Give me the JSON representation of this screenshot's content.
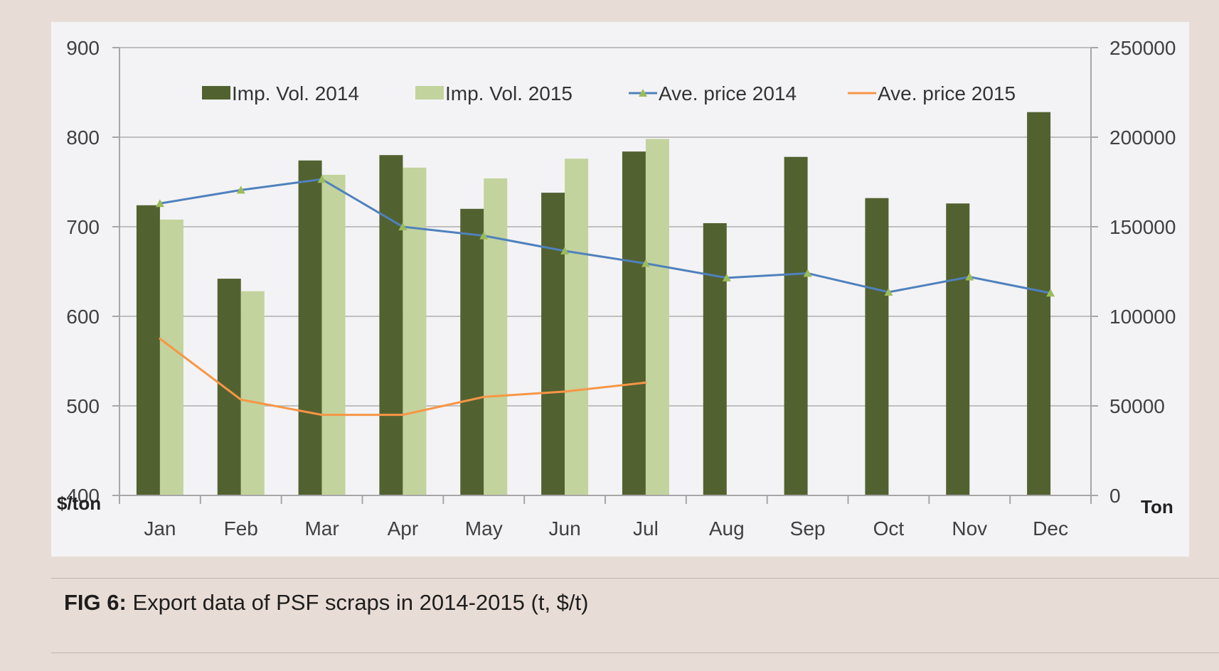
{
  "caption": {
    "label": "FIG 6:",
    "text": "Export data of PSF scraps in 2014-2015 (t, $/t)"
  },
  "chart_data": {
    "type": "bar",
    "categories": [
      "Jan",
      "Feb",
      "Mar",
      "Apr",
      "May",
      "Jun",
      "Jul",
      "Aug",
      "Sep",
      "Oct",
      "Nov",
      "Dec"
    ],
    "y_left": {
      "unit": "$/ton",
      "ylim": [
        400,
        900
      ],
      "ticks": [
        400,
        500,
        600,
        700,
        800,
        900
      ]
    },
    "y_right": {
      "unit": "Ton",
      "ylim": [
        0,
        250000
      ],
      "ticks": [
        0,
        50000,
        100000,
        150000,
        200000,
        250000
      ]
    },
    "grid": true,
    "legend_position": "top",
    "series": [
      {
        "name": "Imp. Vol. 2014",
        "type": "bar",
        "axis": "right",
        "color": "#526130",
        "values": [
          162000,
          121000,
          187000,
          190000,
          160000,
          169000,
          192000,
          152000,
          189000,
          166000,
          163000,
          214000
        ]
      },
      {
        "name": "Imp. Vol. 2015",
        "type": "bar",
        "axis": "right",
        "color": "#c2d39d",
        "values": [
          154000,
          114000,
          179000,
          183000,
          177000,
          188000,
          199000,
          null,
          null,
          null,
          null,
          null
        ]
      },
      {
        "name": "Ave. price 2014",
        "type": "line",
        "axis": "left",
        "color": "#4f81bd",
        "marker": "triangle",
        "values": [
          726,
          741,
          753,
          700,
          690,
          673,
          659,
          643,
          648,
          627,
          644,
          626
        ]
      },
      {
        "name": "Ave. price 2015",
        "type": "line",
        "axis": "left",
        "color": "#f79646",
        "values": [
          575,
          507,
          490,
          490,
          510,
          516,
          526,
          null,
          null,
          null,
          null,
          null
        ]
      }
    ]
  }
}
